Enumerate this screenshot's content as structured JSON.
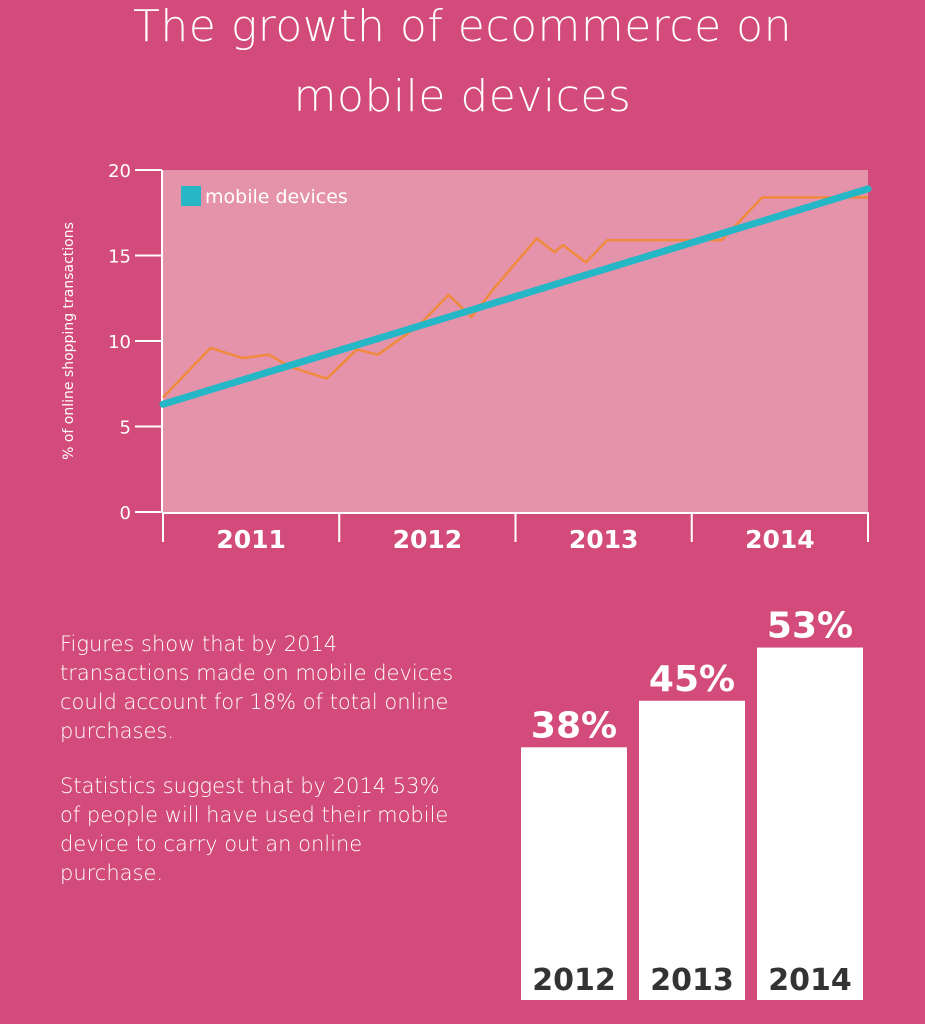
{
  "title": {
    "line1": "The growth of ecommerce on",
    "line2": "mobile devices"
  },
  "colors": {
    "background": "#d24b7a",
    "plot_area": "#e592ab",
    "trend_line": "#26b7c6",
    "actual_line": "#f08a3c",
    "bar_fill": "#ffffff",
    "bar_text": "#333333"
  },
  "text": {
    "paragraph1": "Figures show that by 2014 transactions made on mobile devices could account for 18% of total online purchases.",
    "paragraph2": "Statistics suggest that by 2014 53% of people will have used their mobile device to carry out an online purchase."
  },
  "chart_data": [
    {
      "type": "line",
      "ylabel": "% of online shopping transactions",
      "ylim": [
        0,
        20
      ],
      "yticks": [
        0,
        5,
        10,
        15,
        20
      ],
      "xlim": [
        2011,
        2015
      ],
      "xcategories": [
        "2011",
        "2012",
        "2013",
        "2014"
      ],
      "legend": "top-left",
      "series": [
        {
          "name": "mobile devices",
          "x": [
            2011,
            2015
          ],
          "y": [
            6.3,
            18.9
          ]
        },
        {
          "x": [
            2011.0,
            2011.27,
            2011.45,
            2011.6,
            2011.72,
            2011.93,
            2012.1,
            2012.22,
            2012.45,
            2012.62,
            2012.75,
            2012.88,
            2013.12,
            2013.22,
            2013.27,
            2013.4,
            2013.52,
            2013.7,
            2013.95,
            2014.17,
            2014.4,
            2014.6,
            2014.8,
            2015.0
          ],
          "y": [
            6.7,
            9.6,
            9.0,
            9.2,
            8.5,
            7.8,
            9.5,
            9.2,
            10.9,
            12.7,
            11.4,
            13.1,
            16.0,
            15.2,
            15.6,
            14.6,
            15.9,
            15.9,
            15.9,
            15.9,
            18.4,
            18.4,
            18.4,
            18.4
          ]
        }
      ]
    },
    {
      "type": "bar",
      "categories": [
        "2012",
        "2013",
        "2014"
      ],
      "values": [
        38,
        45,
        53
      ],
      "value_labels": [
        "38%",
        "45%",
        "53%"
      ]
    }
  ]
}
